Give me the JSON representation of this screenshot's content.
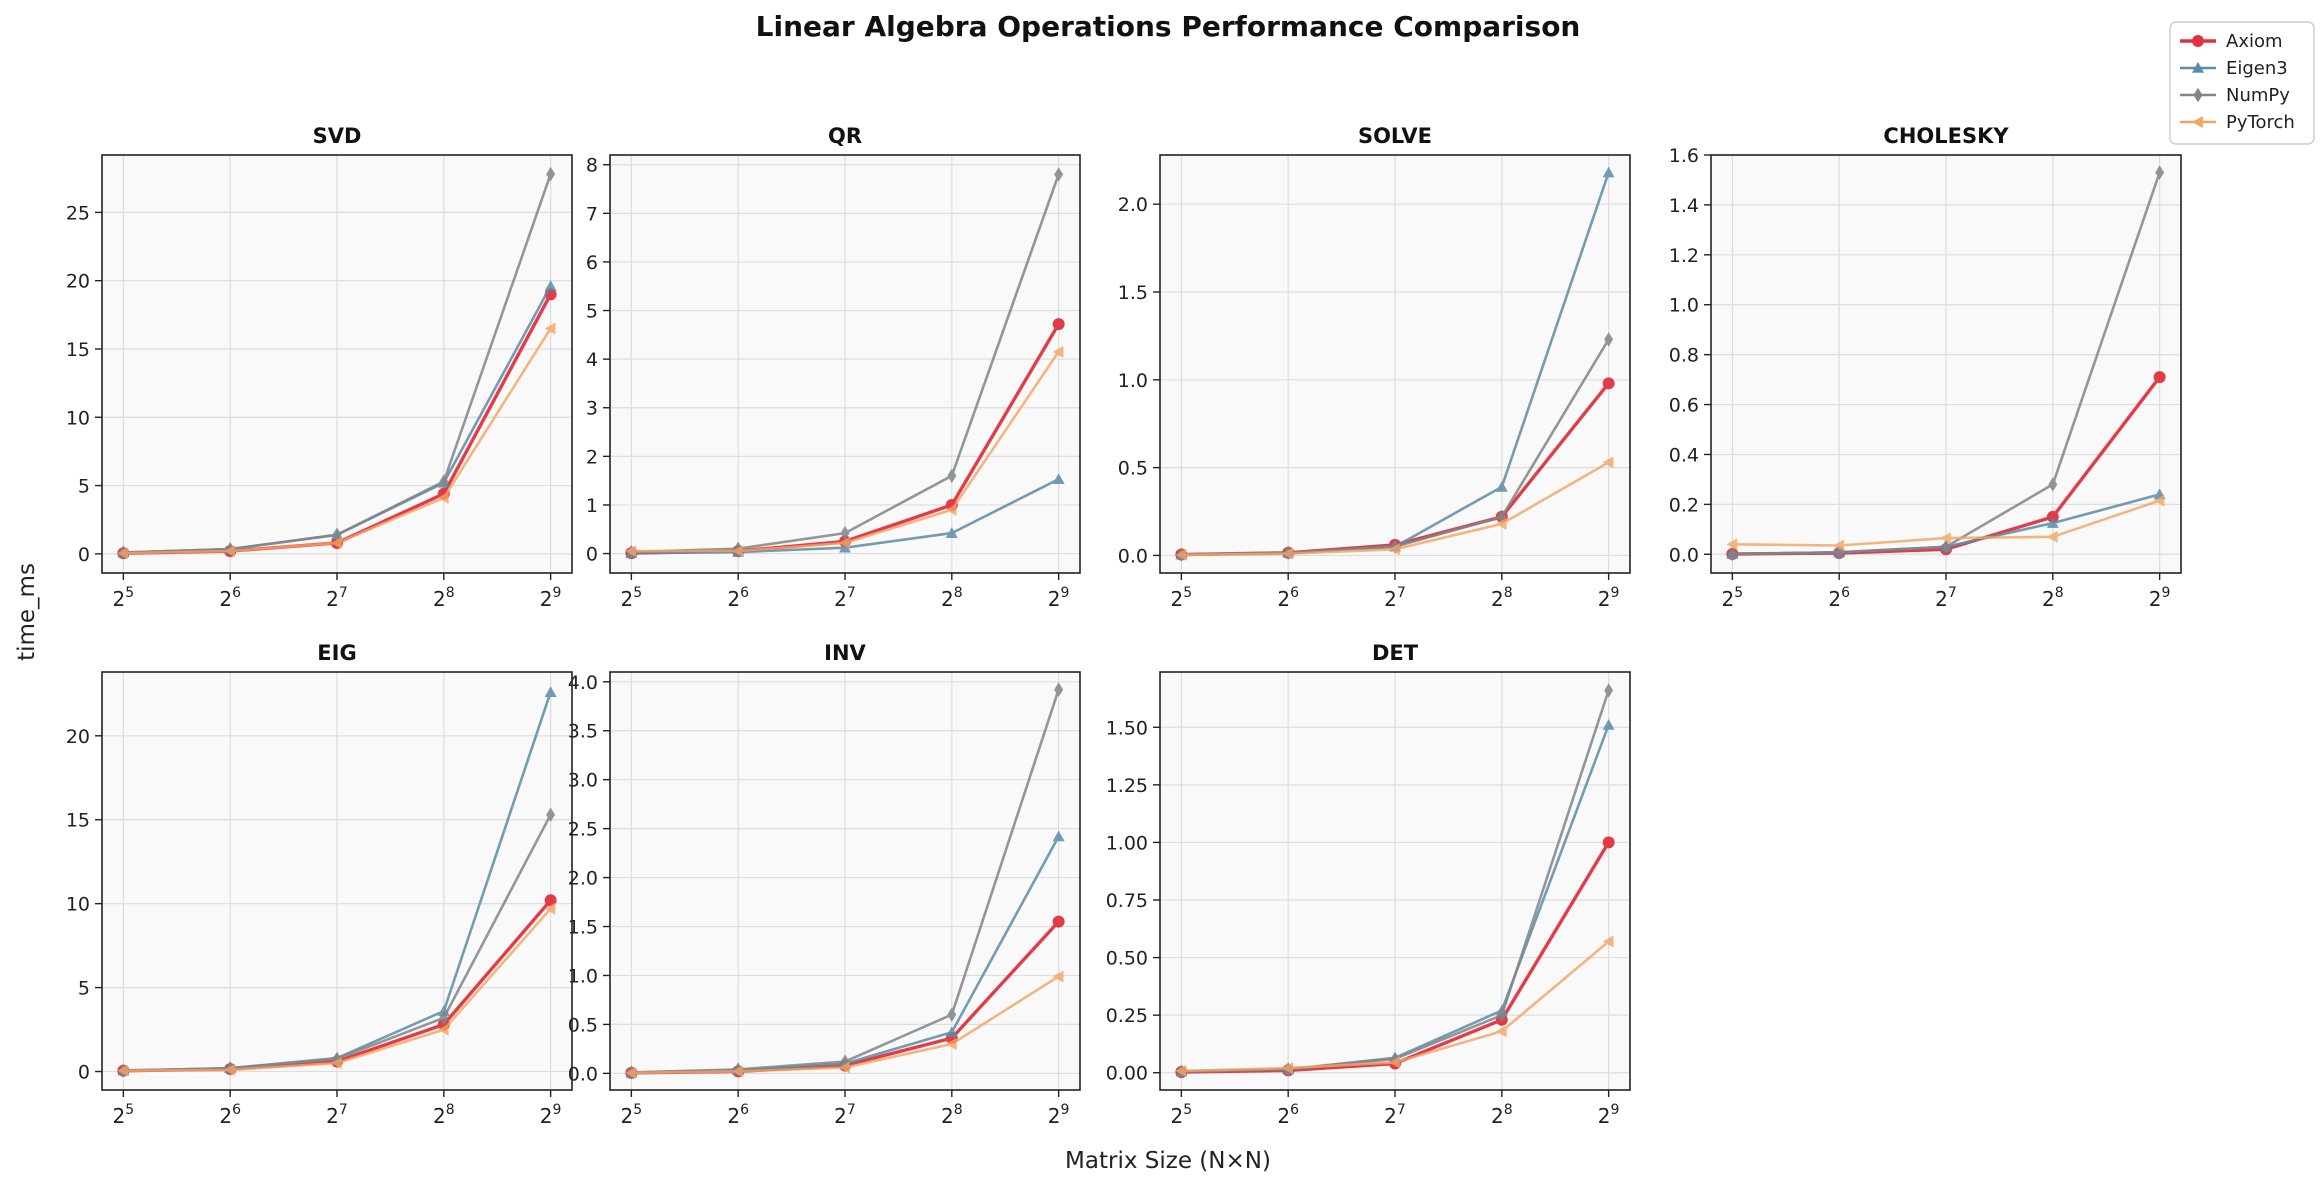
{
  "figure": {
    "title": "Linear Algebra Operations Performance Comparison",
    "xlabel": "Matrix Size (N×N)",
    "ylabel": "time_ms"
  },
  "legend": {
    "placement": "top-right",
    "entries": [
      {
        "name": "Axiom",
        "color": "#e0323e",
        "marker": "circle"
      },
      {
        "name": "Eigen3",
        "color": "#5b8ba8",
        "marker": "triangle-up"
      },
      {
        "name": "NumPy",
        "color": "#808589",
        "marker": "diamond"
      },
      {
        "name": "PyTorch",
        "color": "#f4a460",
        "marker": "triangle-left"
      }
    ]
  },
  "chart_data": [
    {
      "type": "line",
      "title": "SVD",
      "x": [
        32,
        64,
        128,
        256,
        512
      ],
      "x_tick_labels": [
        {
          "base": "2",
          "exp": "5"
        },
        {
          "base": "2",
          "exp": "6"
        },
        {
          "base": "2",
          "exp": "7"
        },
        {
          "base": "2",
          "exp": "8"
        },
        {
          "base": "2",
          "exp": "9"
        }
      ],
      "xscale": "log2",
      "ylim": [
        -1.4,
        29.2
      ],
      "yticks": [
        0,
        5,
        10,
        15,
        20,
        25
      ],
      "ytick_labels": [
        "0",
        "5",
        "10",
        "15",
        "20",
        "25"
      ],
      "grid": true,
      "series": [
        {
          "name": "Axiom",
          "values": [
            0.05,
            0.2,
            0.8,
            4.4,
            19.0
          ]
        },
        {
          "name": "Eigen3",
          "values": [
            0.1,
            0.35,
            1.4,
            5.2,
            19.6
          ]
        },
        {
          "name": "NumPy",
          "values": [
            0.1,
            0.35,
            1.4,
            5.3,
            27.8
          ]
        },
        {
          "name": "PyTorch",
          "values": [
            0.05,
            0.2,
            0.8,
            4.1,
            16.5
          ]
        }
      ]
    },
    {
      "type": "line",
      "title": "QR",
      "x": [
        32,
        64,
        128,
        256,
        512
      ],
      "x_tick_labels": [
        {
          "base": "2",
          "exp": "5"
        },
        {
          "base": "2",
          "exp": "6"
        },
        {
          "base": "2",
          "exp": "7"
        },
        {
          "base": "2",
          "exp": "8"
        },
        {
          "base": "2",
          "exp": "9"
        }
      ],
      "xscale": "log2",
      "ylim": [
        -0.4,
        8.2
      ],
      "yticks": [
        0,
        1,
        2,
        3,
        4,
        5,
        6,
        7,
        8
      ],
      "ytick_labels": [
        "0",
        "1",
        "2",
        "3",
        "4",
        "5",
        "6",
        "7",
        "8"
      ],
      "grid": true,
      "series": [
        {
          "name": "Axiom",
          "values": [
            0.01,
            0.05,
            0.25,
            1.0,
            4.72
          ]
        },
        {
          "name": "Eigen3",
          "values": [
            0.01,
            0.03,
            0.12,
            0.42,
            1.53
          ]
        },
        {
          "name": "NumPy",
          "values": [
            0.03,
            0.1,
            0.42,
            1.6,
            7.8
          ]
        },
        {
          "name": "PyTorch",
          "values": [
            0.05,
            0.05,
            0.22,
            0.9,
            4.15
          ]
        }
      ]
    },
    {
      "type": "line",
      "title": "SOLVE",
      "x": [
        32,
        64,
        128,
        256,
        512
      ],
      "x_tick_labels": [
        {
          "base": "2",
          "exp": "5"
        },
        {
          "base": "2",
          "exp": "6"
        },
        {
          "base": "2",
          "exp": "7"
        },
        {
          "base": "2",
          "exp": "8"
        },
        {
          "base": "2",
          "exp": "9"
        }
      ],
      "xscale": "log2",
      "ylim": [
        -0.1,
        2.28
      ],
      "yticks": [
        0,
        0.5,
        1,
        1.5,
        2
      ],
      "ytick_labels": [
        "0.0",
        "0.5",
        "1.0",
        "1.5",
        "2.0"
      ],
      "grid": true,
      "series": [
        {
          "name": "Axiom",
          "values": [
            0.005,
            0.015,
            0.06,
            0.22,
            0.98
          ]
        },
        {
          "name": "Eigen3",
          "values": [
            0.005,
            0.015,
            0.05,
            0.39,
            2.18
          ]
        },
        {
          "name": "NumPy",
          "values": [
            0.005,
            0.015,
            0.05,
            0.22,
            1.23
          ]
        },
        {
          "name": "PyTorch",
          "values": [
            0.003,
            0.01,
            0.035,
            0.18,
            0.53
          ]
        }
      ]
    },
    {
      "type": "line",
      "title": "CHOLESKY",
      "x": [
        32,
        64,
        128,
        256,
        512
      ],
      "x_tick_labels": [
        {
          "base": "2",
          "exp": "5"
        },
        {
          "base": "2",
          "exp": "6"
        },
        {
          "base": "2",
          "exp": "7"
        },
        {
          "base": "2",
          "exp": "8"
        },
        {
          "base": "2",
          "exp": "9"
        }
      ],
      "xscale": "log2",
      "ylim": [
        -0.075,
        1.6
      ],
      "yticks": [
        0,
        0.2,
        0.4,
        0.6,
        0.8,
        1.0,
        1.2,
        1.4,
        1.6
      ],
      "ytick_labels": [
        "0.0",
        "0.2",
        "0.4",
        "0.6",
        "0.8",
        "1.0",
        "1.2",
        "1.4",
        "1.6"
      ],
      "grid": true,
      "series": [
        {
          "name": "Axiom",
          "values": [
            0.001,
            0.005,
            0.02,
            0.15,
            0.71
          ]
        },
        {
          "name": "Eigen3",
          "values": [
            0.001,
            0.008,
            0.03,
            0.125,
            0.24
          ]
        },
        {
          "name": "NumPy",
          "values": [
            0.001,
            0.008,
            0.03,
            0.28,
            1.53
          ]
        },
        {
          "name": "PyTorch",
          "values": [
            0.04,
            0.035,
            0.065,
            0.07,
            0.215
          ]
        }
      ]
    },
    {
      "type": "line",
      "title": "EIG",
      "x": [
        32,
        64,
        128,
        256,
        512
      ],
      "x_tick_labels": [
        {
          "base": "2",
          "exp": "5"
        },
        {
          "base": "2",
          "exp": "6"
        },
        {
          "base": "2",
          "exp": "7"
        },
        {
          "base": "2",
          "exp": "8"
        },
        {
          "base": "2",
          "exp": "9"
        }
      ],
      "xscale": "log2",
      "ylim": [
        -1.1,
        23.8
      ],
      "yticks": [
        0,
        5,
        10,
        15,
        20
      ],
      "ytick_labels": [
        "0",
        "5",
        "10",
        "15",
        "20"
      ],
      "grid": true,
      "series": [
        {
          "name": "Axiom",
          "values": [
            0.05,
            0.15,
            0.6,
            2.8,
            10.2
          ]
        },
        {
          "name": "Eigen3",
          "values": [
            0.05,
            0.2,
            0.8,
            3.6,
            22.6
          ]
        },
        {
          "name": "NumPy",
          "values": [
            0.05,
            0.2,
            0.75,
            3.2,
            15.3
          ]
        },
        {
          "name": "PyTorch",
          "values": [
            0.05,
            0.1,
            0.5,
            2.5,
            9.7
          ]
        }
      ]
    },
    {
      "type": "line",
      "title": "INV",
      "x": [
        32,
        64,
        128,
        256,
        512
      ],
      "x_tick_labels": [
        {
          "base": "2",
          "exp": "5"
        },
        {
          "base": "2",
          "exp": "6"
        },
        {
          "base": "2",
          "exp": "7"
        },
        {
          "base": "2",
          "exp": "8"
        },
        {
          "base": "2",
          "exp": "9"
        }
      ],
      "xscale": "log2",
      "ylim": [
        -0.17,
        4.1
      ],
      "yticks": [
        0,
        0.5,
        1,
        1.5,
        2,
        2.5,
        3,
        3.5,
        4
      ],
      "ytick_labels": [
        "0.0",
        "0.5",
        "1.0",
        "1.5",
        "2.0",
        "2.5",
        "3.0",
        "3.5",
        "4.0"
      ],
      "grid": true,
      "series": [
        {
          "name": "Axiom",
          "values": [
            0.005,
            0.02,
            0.08,
            0.36,
            1.55
          ]
        },
        {
          "name": "Eigen3",
          "values": [
            0.005,
            0.03,
            0.1,
            0.42,
            2.42
          ]
        },
        {
          "name": "NumPy",
          "values": [
            0.01,
            0.04,
            0.12,
            0.6,
            3.92
          ]
        },
        {
          "name": "PyTorch",
          "values": [
            0.005,
            0.02,
            0.06,
            0.3,
            0.99
          ]
        }
      ]
    },
    {
      "type": "line",
      "title": "DET",
      "x": [
        32,
        64,
        128,
        256,
        512
      ],
      "x_tick_labels": [
        {
          "base": "2",
          "exp": "5"
        },
        {
          "base": "2",
          "exp": "6"
        },
        {
          "base": "2",
          "exp": "7"
        },
        {
          "base": "2",
          "exp": "8"
        },
        {
          "base": "2",
          "exp": "9"
        }
      ],
      "xscale": "log2",
      "ylim": [
        -0.075,
        1.74
      ],
      "yticks": [
        0,
        0.25,
        0.5,
        0.75,
        1.0,
        1.25,
        1.5
      ],
      "ytick_labels": [
        "0.00",
        "0.25",
        "0.50",
        "0.75",
        "1.00",
        "1.25",
        "1.50"
      ],
      "grid": true,
      "series": [
        {
          "name": "Axiom",
          "values": [
            0.003,
            0.01,
            0.04,
            0.23,
            1.0
          ]
        },
        {
          "name": "Eigen3",
          "values": [
            0.005,
            0.015,
            0.065,
            0.27,
            1.51
          ]
        },
        {
          "name": "NumPy",
          "values": [
            0.005,
            0.015,
            0.06,
            0.25,
            1.66
          ]
        },
        {
          "name": "PyTorch",
          "values": [
            0.008,
            0.02,
            0.045,
            0.18,
            0.57
          ]
        }
      ]
    }
  ]
}
